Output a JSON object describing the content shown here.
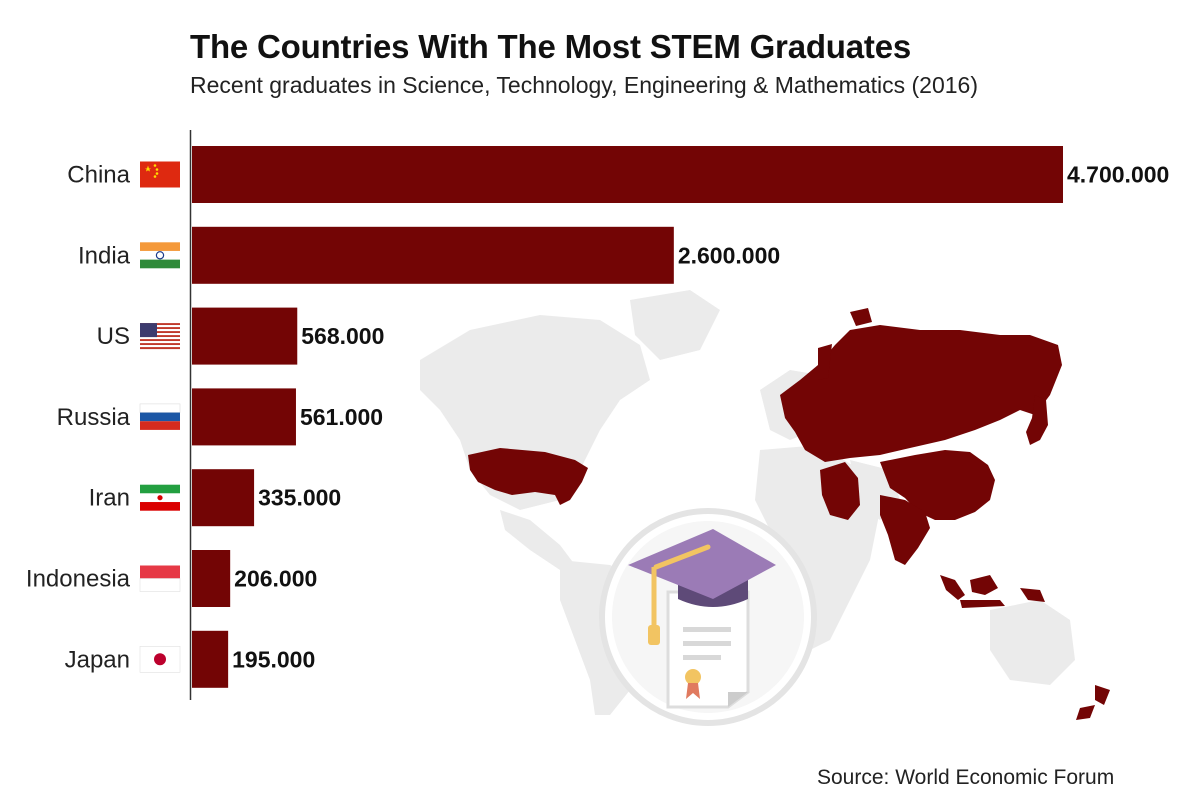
{
  "title": "The Countries With The Most STEM Graduates",
  "subtitle": "Recent graduates in Science, Technology, Engineering & Mathematics (2016)",
  "source": "Source: World Economic Forum",
  "colors": {
    "bar": "#730505",
    "map_highlight": "#730505",
    "map_base": "#ebebeb",
    "badge_ring": "#e6e6e6",
    "cap": "#9b7bb6",
    "tassel": "#f2c462"
  },
  "chart_data": {
    "type": "bar",
    "orientation": "horizontal",
    "categories": [
      "China",
      "India",
      "US",
      "Russia",
      "Iran",
      "Indonesia",
      "Japan"
    ],
    "values": [
      4700000,
      2600000,
      568000,
      561000,
      335000,
      206000,
      195000
    ],
    "value_labels": [
      "4.700.000",
      "2.600.000",
      "568.000",
      "561.000",
      "335.000",
      "206.000",
      "195.000"
    ],
    "flags": [
      "china-flag-icon",
      "india-flag-icon",
      "us-flag-icon",
      "russia-flag-icon",
      "iran-flag-icon",
      "indonesia-flag-icon",
      "japan-flag-icon"
    ],
    "xlim": [
      0,
      4700000
    ],
    "grid": false,
    "legend": "none"
  }
}
